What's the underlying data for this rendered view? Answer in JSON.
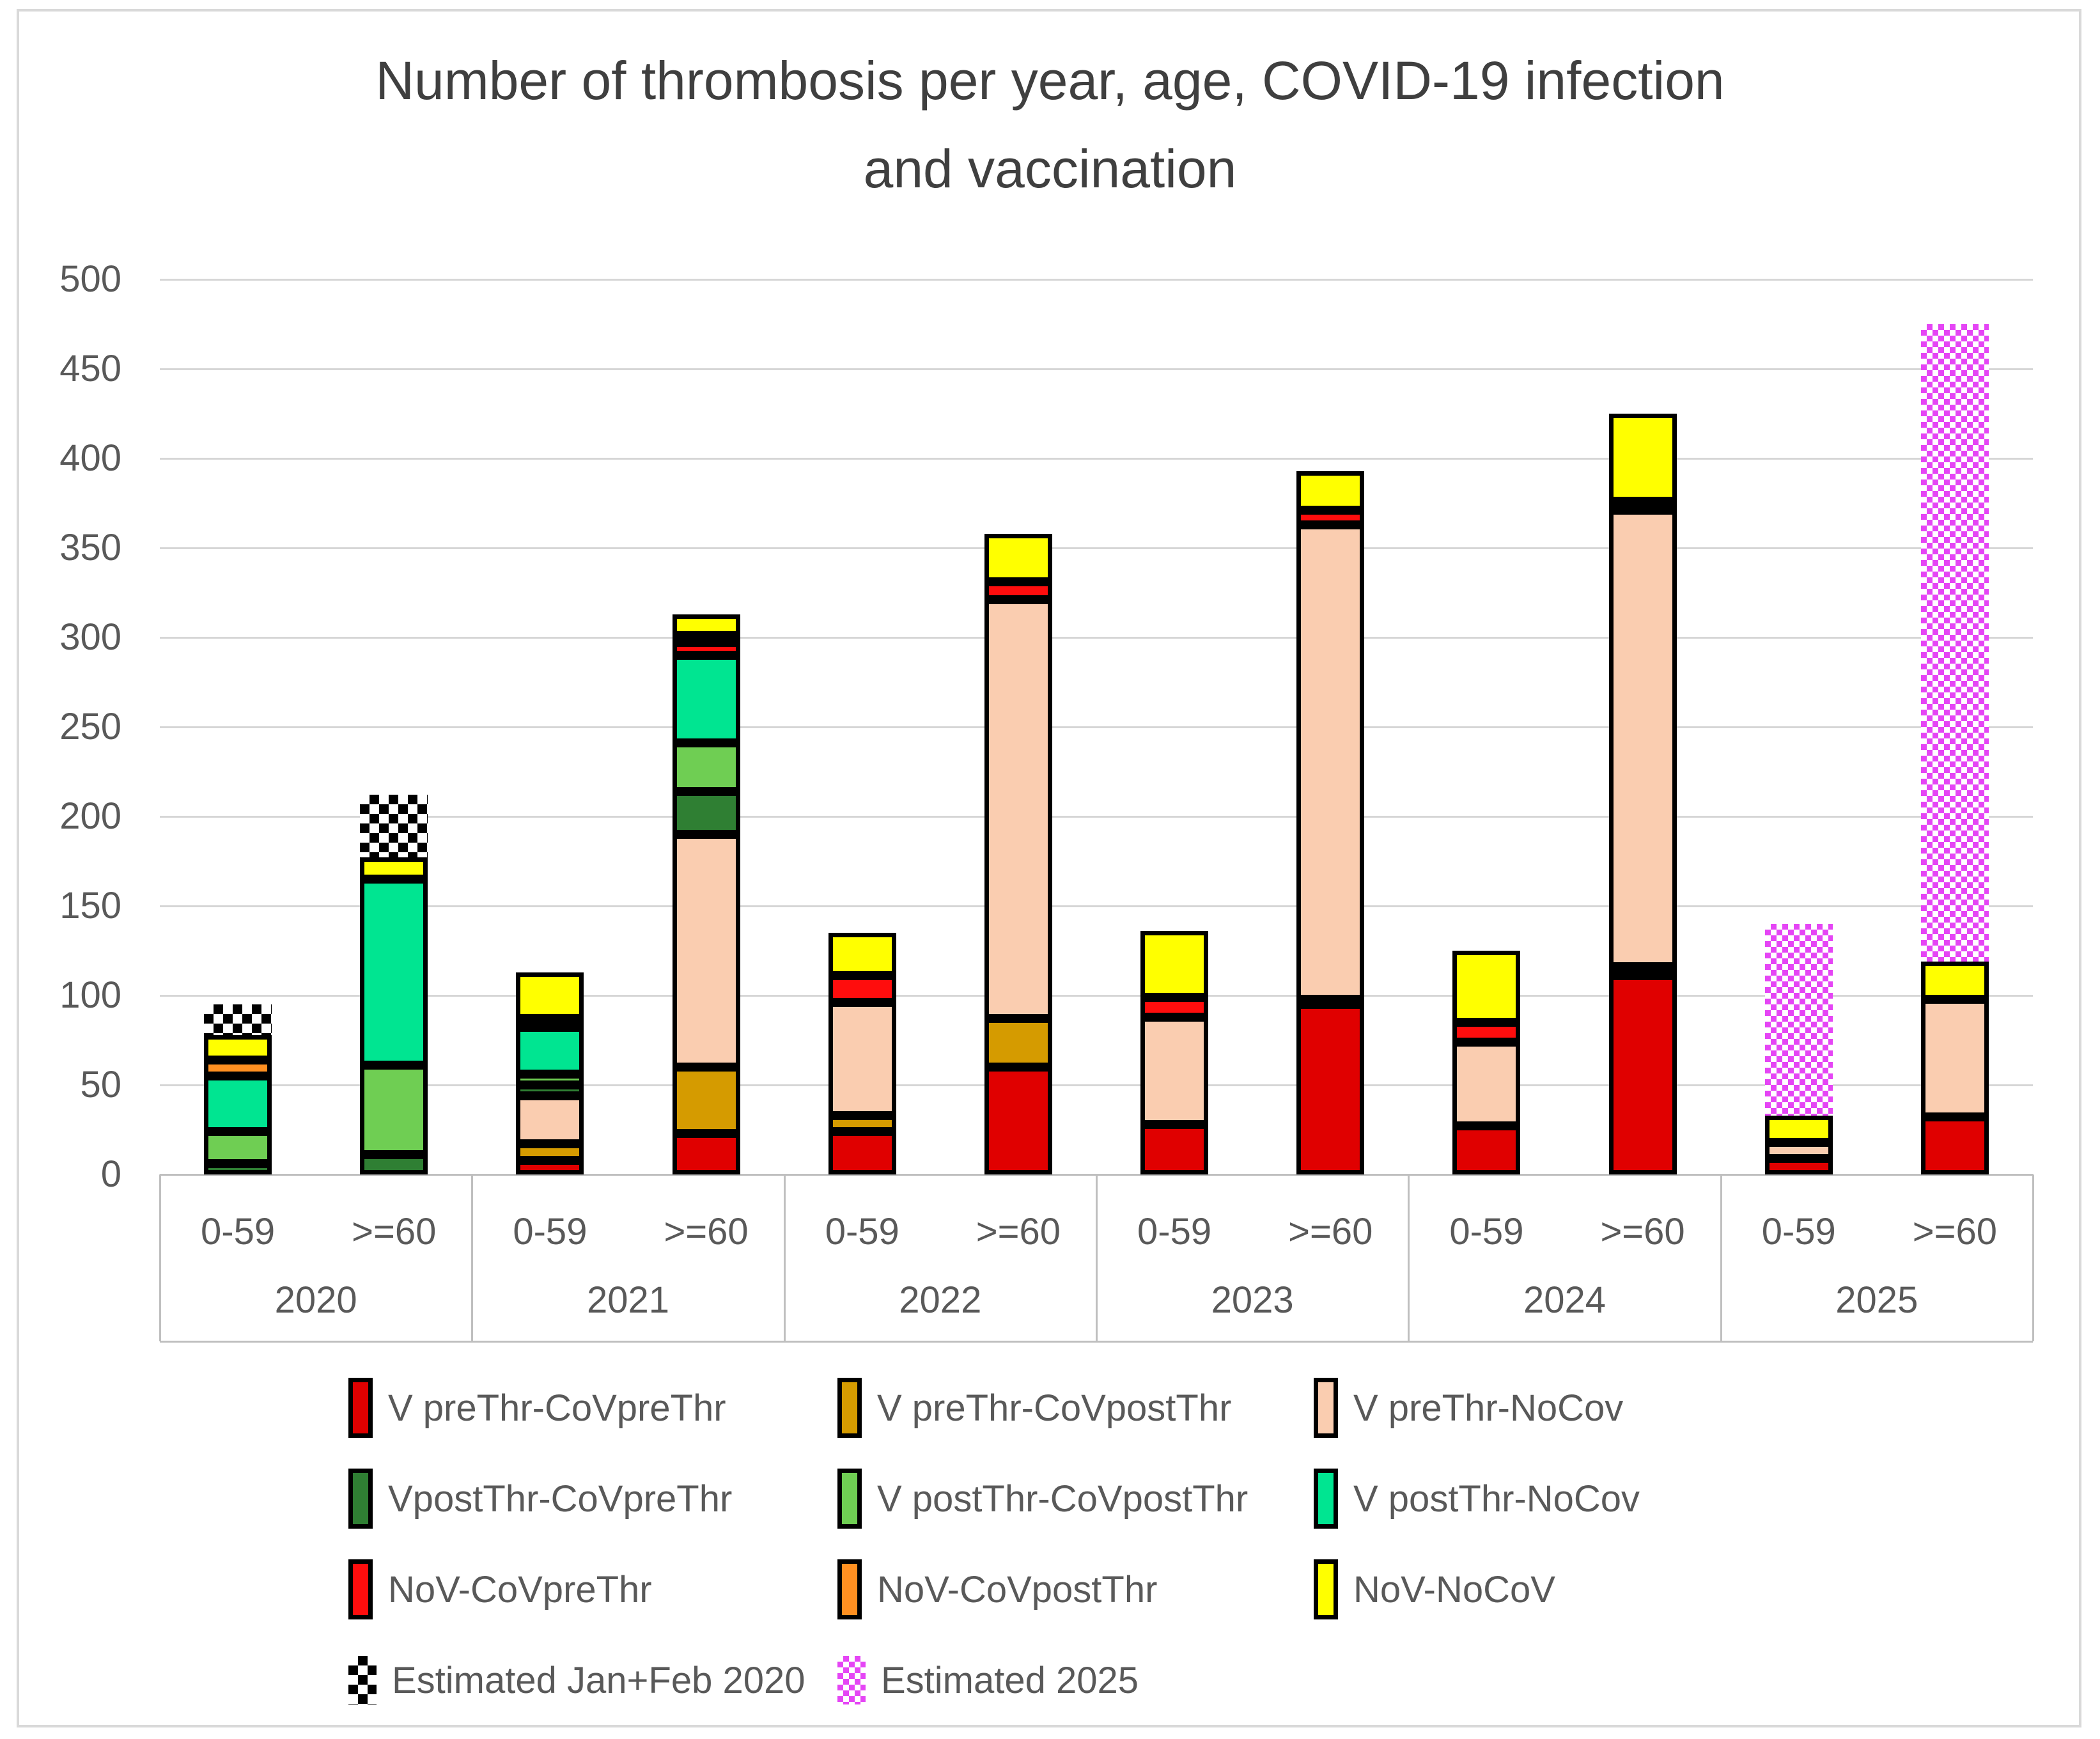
{
  "figure": {
    "title_lines": [
      "Number of thrombosis per year, age, COVID-19 infection",
      "and vaccination"
    ]
  },
  "chart_data": {
    "type": "bar",
    "stacked": true,
    "title": "Number of thrombosis per year, age, COVID-19 infection and vaccination",
    "grid": true,
    "legend_position": "bottom",
    "y_axis": {
      "min": 0,
      "max": 500,
      "step": 50
    },
    "x_axis": {
      "groups": [
        {
          "year": "2020",
          "ages": [
            "0-59",
            ">=60"
          ]
        },
        {
          "year": "2021",
          "ages": [
            "0-59",
            ">=60"
          ]
        },
        {
          "year": "2022",
          "ages": [
            "0-59",
            ">=60"
          ]
        },
        {
          "year": "2023",
          "ages": [
            "0-59",
            ">=60"
          ]
        },
        {
          "year": "2024",
          "ages": [
            "0-59",
            ">=60"
          ]
        },
        {
          "year": "2025",
          "ages": [
            "0-59",
            ">=60"
          ]
        }
      ]
    },
    "series": [
      {
        "name": "V preThr-CoVpreThr",
        "color": "#e00000",
        "values": [
          0,
          0,
          8,
          23,
          24,
          60,
          28,
          95,
          27,
          111,
          9,
          32
        ]
      },
      {
        "name": "V preThr-CoVpostThr",
        "color": "#d59b00",
        "values": [
          0,
          0,
          9,
          37,
          9,
          27,
          0,
          3,
          0,
          5,
          0,
          0
        ]
      },
      {
        "name": "V preThr-NoCov",
        "color": "#facdb0",
        "values": [
          0,
          0,
          27,
          130,
          63,
          234,
          60,
          265,
          47,
          255,
          9,
          66
        ]
      },
      {
        "name": "VpostThr-CoVpreThr",
        "color": "#2f7f33",
        "values": [
          6,
          11,
          6,
          24,
          0,
          0,
          0,
          0,
          0,
          0,
          0,
          0
        ]
      },
      {
        "name": "V postThr-CoVpostThr",
        "color": "#6fce53",
        "values": [
          18,
          50,
          6,
          27,
          0,
          0,
          0,
          0,
          0,
          0,
          0,
          0
        ]
      },
      {
        "name": "V postThr-NoCov",
        "color": "#00e591",
        "values": [
          31,
          104,
          26,
          49,
          0,
          0,
          0,
          0,
          0,
          0,
          0,
          0
        ]
      },
      {
        "name": "NoV-CoVpreThr",
        "color": "#ff0d0d",
        "values": [
          0,
          0,
          0,
          7,
          15,
          10,
          11,
          8,
          11,
          5,
          0,
          0
        ]
      },
      {
        "name": "NoV-CoVpostThr",
        "color": "#ff9021",
        "values": [
          9,
          0,
          5,
          4,
          0,
          0,
          0,
          0,
          0,
          0,
          0,
          0
        ]
      },
      {
        "name": "NoV-NoCoV",
        "color": "#ffff00",
        "values": [
          14,
          12,
          26,
          12,
          24,
          27,
          37,
          22,
          40,
          49,
          15,
          21
        ]
      }
    ],
    "estimated_series": [
      {
        "name": "Estimated Jan+Feb 2020",
        "pattern": "checker",
        "color": "#000000",
        "values": [
          17,
          35,
          0,
          0,
          0,
          0,
          0,
          0,
          0,
          0,
          0,
          0
        ]
      },
      {
        "name": "Estimated 2025",
        "pattern": "dots",
        "color": "#e545f5",
        "values": [
          0,
          0,
          0,
          0,
          0,
          0,
          0,
          0,
          0,
          0,
          107,
          356
        ]
      }
    ],
    "bar_solid_totals": [
      78,
      177,
      113,
      313,
      135,
      358,
      136,
      393,
      125,
      425,
      33,
      119
    ],
    "bar_tops_with_estimates": [
      95,
      212,
      113,
      313,
      135,
      358,
      136,
      393,
      125,
      425,
      140,
      475
    ]
  }
}
